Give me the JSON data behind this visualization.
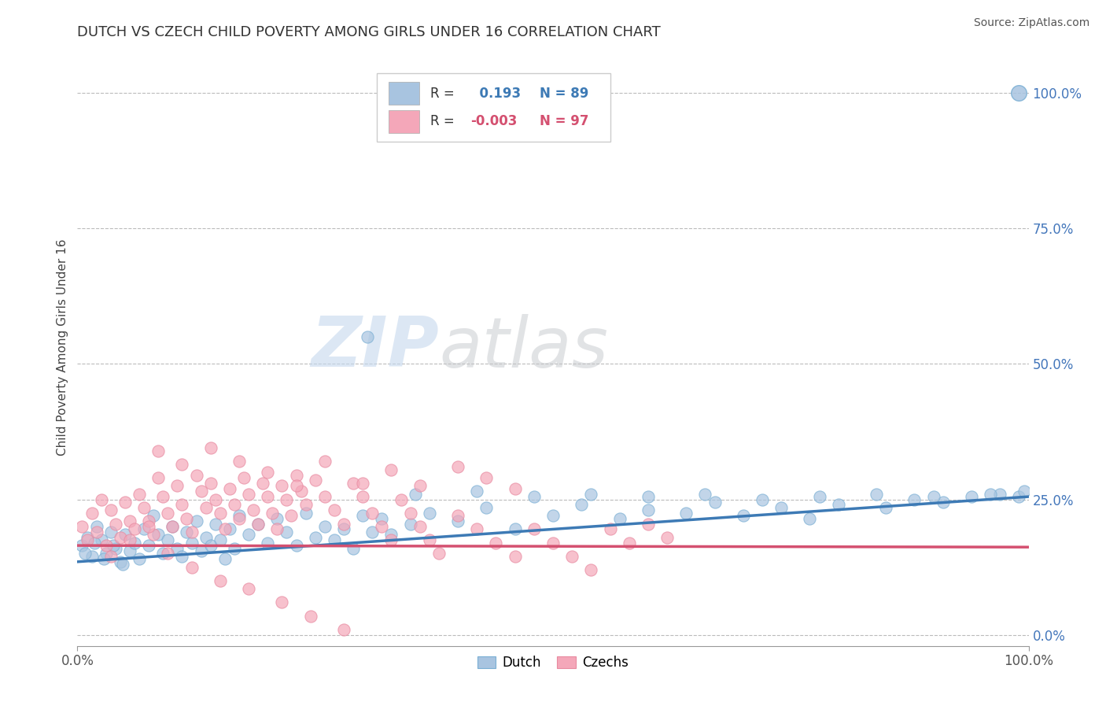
{
  "title": "DUTCH VS CZECH CHILD POVERTY AMONG GIRLS UNDER 16 CORRELATION CHART",
  "source_text": "Source: ZipAtlas.com",
  "ylabel": "Child Poverty Among Girls Under 16",
  "xlim": [
    0.0,
    100.0
  ],
  "ylim": [
    -2.0,
    108.0
  ],
  "xtick_labels": [
    "0.0%",
    "100.0%"
  ],
  "xtick_pos": [
    0.0,
    100.0
  ],
  "ytick_labels_right": [
    "0.0%",
    "25.0%",
    "50.0%",
    "75.0%",
    "100.0%"
  ],
  "ytick_pos_right": [
    0.0,
    25.0,
    50.0,
    75.0,
    100.0
  ],
  "dutch_color": "#a8c4e0",
  "czech_color": "#f4a7b9",
  "dutch_edge_color": "#7aafd4",
  "czech_edge_color": "#e88aa0",
  "dutch_line_color": "#3d7ab5",
  "czech_line_color": "#d45070",
  "dutch_R": 0.193,
  "dutch_N": 89,
  "czech_R": -0.003,
  "czech_N": 97,
  "legend_label_dutch": "Dutch",
  "legend_label_czech": "Czechs",
  "watermark_zip": "ZIP",
  "watermark_atlas": "atlas",
  "background_color": "#ffffff",
  "grid_color": "#bbbbbb",
  "title_color": "#333333",
  "right_axis_color": "#4477bb",
  "dutch_trend_start_y": 13.5,
  "dutch_trend_end_y": 25.5,
  "czech_trend_start_y": 16.5,
  "czech_trend_end_y": 16.2,
  "dutch_scatter_x": [
    0.5,
    1.0,
    1.5,
    2.0,
    2.5,
    3.0,
    3.5,
    4.0,
    4.5,
    5.0,
    5.5,
    6.0,
    6.5,
    7.0,
    7.5,
    8.0,
    8.5,
    9.0,
    9.5,
    10.0,
    10.5,
    11.0,
    11.5,
    12.0,
    12.5,
    13.0,
    13.5,
    14.0,
    14.5,
    15.0,
    15.5,
    16.0,
    16.5,
    17.0,
    18.0,
    19.0,
    20.0,
    21.0,
    22.0,
    23.0,
    24.0,
    25.0,
    26.0,
    27.0,
    28.0,
    29.0,
    30.0,
    31.0,
    32.0,
    33.0,
    35.0,
    37.0,
    40.0,
    43.0,
    46.0,
    50.0,
    53.0,
    57.0,
    60.0,
    64.0,
    67.0,
    70.0,
    74.0,
    77.0,
    80.0,
    85.0,
    88.0,
    91.0,
    94.0,
    97.0,
    30.5,
    35.5,
    42.0,
    48.0,
    54.0,
    60.0,
    66.0,
    72.0,
    78.0,
    84.0,
    90.0,
    96.0,
    99.0,
    99.5,
    0.8,
    1.8,
    2.8,
    3.8,
    4.8
  ],
  "dutch_scatter_y": [
    16.5,
    18.0,
    14.5,
    20.0,
    17.5,
    15.0,
    19.0,
    16.0,
    13.5,
    18.5,
    15.5,
    17.0,
    14.0,
    19.5,
    16.5,
    22.0,
    18.5,
    15.0,
    17.5,
    20.0,
    16.0,
    14.5,
    19.0,
    17.0,
    21.0,
    15.5,
    18.0,
    16.5,
    20.5,
    17.5,
    14.0,
    19.5,
    16.0,
    22.0,
    18.5,
    20.5,
    17.0,
    21.5,
    19.0,
    16.5,
    22.5,
    18.0,
    20.0,
    17.5,
    19.5,
    16.0,
    22.0,
    19.0,
    21.5,
    18.5,
    20.5,
    22.5,
    21.0,
    23.5,
    19.5,
    22.0,
    24.0,
    21.5,
    23.0,
    22.5,
    24.5,
    22.0,
    23.5,
    21.5,
    24.0,
    23.5,
    25.0,
    24.5,
    25.5,
    26.0,
    55.0,
    26.0,
    26.5,
    25.5,
    26.0,
    25.5,
    26.0,
    25.0,
    25.5,
    26.0,
    25.5,
    26.0,
    25.5,
    26.5,
    15.0,
    17.0,
    14.0,
    16.5,
    13.0
  ],
  "czech_scatter_x": [
    0.5,
    1.0,
    1.5,
    2.0,
    2.5,
    3.0,
    3.5,
    4.0,
    4.5,
    5.0,
    5.5,
    6.0,
    6.5,
    7.0,
    7.5,
    8.0,
    8.5,
    9.0,
    9.5,
    10.0,
    10.5,
    11.0,
    11.5,
    12.0,
    12.5,
    13.0,
    13.5,
    14.0,
    14.5,
    15.0,
    15.5,
    16.0,
    16.5,
    17.0,
    17.5,
    18.0,
    18.5,
    19.0,
    19.5,
    20.0,
    20.5,
    21.0,
    21.5,
    22.0,
    22.5,
    23.0,
    23.5,
    24.0,
    25.0,
    26.0,
    27.0,
    28.0,
    29.0,
    30.0,
    31.0,
    32.0,
    33.0,
    34.0,
    35.0,
    36.0,
    37.0,
    38.0,
    40.0,
    42.0,
    44.0,
    46.0,
    48.0,
    50.0,
    52.0,
    54.0,
    56.0,
    58.0,
    60.0,
    62.0,
    8.5,
    11.0,
    14.0,
    17.0,
    20.0,
    23.0,
    26.0,
    30.0,
    33.0,
    36.0,
    40.0,
    43.0,
    46.0,
    3.5,
    5.5,
    7.5,
    9.5,
    12.0,
    15.0,
    18.0,
    21.5,
    24.5,
    28.0
  ],
  "czech_scatter_y": [
    20.0,
    17.5,
    22.5,
    19.0,
    25.0,
    16.5,
    23.0,
    20.5,
    18.0,
    24.5,
    21.0,
    19.5,
    26.0,
    23.5,
    21.0,
    18.5,
    29.0,
    25.5,
    22.5,
    20.0,
    27.5,
    24.0,
    21.5,
    19.0,
    29.5,
    26.5,
    23.5,
    28.0,
    25.0,
    22.5,
    19.5,
    27.0,
    24.0,
    21.5,
    29.0,
    26.0,
    23.0,
    20.5,
    28.0,
    25.5,
    22.5,
    19.5,
    27.5,
    25.0,
    22.0,
    29.5,
    26.5,
    24.0,
    28.5,
    25.5,
    23.0,
    20.5,
    28.0,
    25.5,
    22.5,
    20.0,
    17.5,
    25.0,
    22.5,
    20.0,
    17.5,
    15.0,
    22.0,
    19.5,
    17.0,
    14.5,
    19.5,
    17.0,
    14.5,
    12.0,
    19.5,
    17.0,
    20.5,
    18.0,
    34.0,
    31.5,
    34.5,
    32.0,
    30.0,
    27.5,
    32.0,
    28.0,
    30.5,
    27.5,
    31.0,
    29.0,
    27.0,
    14.5,
    17.5,
    20.0,
    15.0,
    12.5,
    10.0,
    8.5,
    6.0,
    3.5,
    1.0
  ],
  "outlier_dutch_x": 99.0,
  "outlier_dutch_y": 100.0
}
